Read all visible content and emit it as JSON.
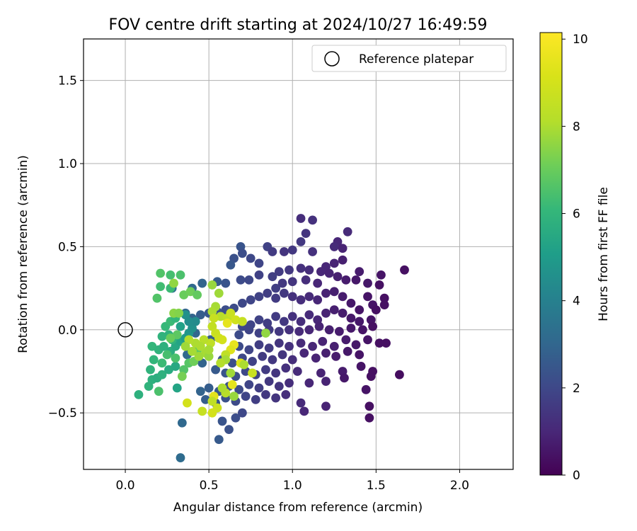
{
  "chart_data": {
    "type": "scatter",
    "title": "FOV centre drift starting at 2024/10/27 16:49:59",
    "xlabel": "Angular distance from reference (arcmin)",
    "ylabel": "Rotation from reference (arcmin)",
    "xlim": [
      -0.25,
      2.32
    ],
    "ylim": [
      -0.84,
      1.75
    ],
    "xticks": [
      0.0,
      0.5,
      1.0,
      1.5,
      2.0
    ],
    "xtick_labels": [
      "0.0",
      "0.5",
      "1.0",
      "1.5",
      "2.0"
    ],
    "yticks": [
      -0.5,
      0.0,
      0.5,
      1.0,
      1.5
    ],
    "ytick_labels": [
      "−0.5",
      "0.0",
      "0.5",
      "1.0",
      "1.5"
    ],
    "grid": true,
    "legend": {
      "placement": "upper right",
      "entries": [
        "Reference platepar"
      ]
    },
    "reference": {
      "x": 0.0,
      "y": 0.0,
      "name": "Reference platepar",
      "marker": "hollow-circle"
    },
    "colorbar": {
      "label": "Hours from first FF file",
      "colormap": "viridis",
      "range": [
        0,
        10.15
      ],
      "ticks": [
        0,
        2,
        4,
        6,
        8,
        10
      ],
      "tick_labels": [
        "0",
        "2",
        "4",
        "6",
        "8",
        "10"
      ]
    },
    "points": [
      [
        1.05,
        0.67,
        1.2
      ],
      [
        1.12,
        0.66,
        1.3
      ],
      [
        1.08,
        0.58,
        1.4
      ],
      [
        1.33,
        0.59,
        1.1
      ],
      [
        1.05,
        0.53,
        1.5
      ],
      [
        1.27,
        0.53,
        1.0
      ],
      [
        0.69,
        0.5,
        2.4
      ],
      [
        0.7,
        0.46,
        2.2
      ],
      [
        0.85,
        0.5,
        1.8
      ],
      [
        0.88,
        0.47,
        1.6
      ],
      [
        0.95,
        0.47,
        1.4
      ],
      [
        1.0,
        0.48,
        1.5
      ],
      [
        1.12,
        0.47,
        1.3
      ],
      [
        1.25,
        0.5,
        1.1
      ],
      [
        1.3,
        0.49,
        0.9
      ],
      [
        0.65,
        0.43,
        2.3
      ],
      [
        0.75,
        0.43,
        2.0
      ],
      [
        0.8,
        0.4,
        1.9
      ],
      [
        0.63,
        0.39,
        2.5
      ],
      [
        1.3,
        0.42,
        0.8
      ],
      [
        1.25,
        0.4,
        0.9
      ],
      [
        1.2,
        0.38,
        1.0
      ],
      [
        1.17,
        0.35,
        1.0
      ],
      [
        1.1,
        0.36,
        1.2
      ],
      [
        1.05,
        0.37,
        1.3
      ],
      [
        0.98,
        0.36,
        1.5
      ],
      [
        0.92,
        0.35,
        1.6
      ],
      [
        0.88,
        0.32,
        1.7
      ],
      [
        0.8,
        0.33,
        1.8
      ],
      [
        0.74,
        0.3,
        2.0
      ],
      [
        0.69,
        0.3,
        2.1
      ],
      [
        0.6,
        0.28,
        2.4
      ],
      [
        0.55,
        0.29,
        2.6
      ],
      [
        0.46,
        0.28,
        2.9
      ],
      [
        0.4,
        0.25,
        3.1
      ],
      [
        0.28,
        0.25,
        3.3
      ],
      [
        1.4,
        0.35,
        0.7
      ],
      [
        1.38,
        0.3,
        0.6
      ],
      [
        1.32,
        0.3,
        0.7
      ],
      [
        1.27,
        0.32,
        0.8
      ],
      [
        1.22,
        0.34,
        0.9
      ],
      [
        1.15,
        0.28,
        1.0
      ],
      [
        1.08,
        0.3,
        1.2
      ],
      [
        1.0,
        0.29,
        1.4
      ],
      [
        0.94,
        0.28,
        1.5
      ],
      [
        0.9,
        0.25,
        1.7
      ],
      [
        1.45,
        0.28,
        0.6
      ],
      [
        1.53,
        0.33,
        0.5
      ],
      [
        1.67,
        0.36,
        0.4
      ],
      [
        1.45,
        0.2,
        0.5
      ],
      [
        1.55,
        0.19,
        0.4
      ],
      [
        1.55,
        0.15,
        0.4
      ],
      [
        1.48,
        0.15,
        0.5
      ],
      [
        1.5,
        0.12,
        0.4
      ],
      [
        1.4,
        0.12,
        0.5
      ],
      [
        1.35,
        0.16,
        0.6
      ],
      [
        1.3,
        0.2,
        0.7
      ],
      [
        1.25,
        0.23,
        0.8
      ],
      [
        1.2,
        0.22,
        0.9
      ],
      [
        1.15,
        0.18,
        1.0
      ],
      [
        1.1,
        0.2,
        1.1
      ],
      [
        1.05,
        0.18,
        1.2
      ],
      [
        1.0,
        0.2,
        1.3
      ],
      [
        0.95,
        0.22,
        1.5
      ],
      [
        0.9,
        0.19,
        1.6
      ],
      [
        0.85,
        0.22,
        1.7
      ],
      [
        0.8,
        0.2,
        1.8
      ],
      [
        0.75,
        0.18,
        1.9
      ],
      [
        0.7,
        0.16,
        2.0
      ],
      [
        0.65,
        0.13,
        2.1
      ],
      [
        0.6,
        0.12,
        2.2
      ],
      [
        0.55,
        0.11,
        2.4
      ],
      [
        0.5,
        0.1,
        2.5
      ],
      [
        0.45,
        0.09,
        2.7
      ],
      [
        0.4,
        0.07,
        2.9
      ],
      [
        0.36,
        0.1,
        3.0
      ],
      [
        1.47,
        0.06,
        0.5
      ],
      [
        1.4,
        0.05,
        0.6
      ],
      [
        1.35,
        0.07,
        0.6
      ],
      [
        1.3,
        0.1,
        0.7
      ],
      [
        1.25,
        0.12,
        0.8
      ],
      [
        1.2,
        0.1,
        0.9
      ],
      [
        1.15,
        0.06,
        1.0
      ],
      [
        1.1,
        0.09,
        1.1
      ],
      [
        1.05,
        0.05,
        1.2
      ],
      [
        1.0,
        0.08,
        1.3
      ],
      [
        0.95,
        0.05,
        1.5
      ],
      [
        0.9,
        0.08,
        1.6
      ],
      [
        0.85,
        0.04,
        1.7
      ],
      [
        0.8,
        0.06,
        1.8
      ],
      [
        0.75,
        0.03,
        1.9
      ],
      [
        0.7,
        0.02,
        2.0
      ],
      [
        1.48,
        0.02,
        0.4
      ],
      [
        1.42,
        0.0,
        0.5
      ],
      [
        1.35,
        0.01,
        0.6
      ],
      [
        1.28,
        -0.01,
        0.7
      ],
      [
        1.22,
        0.0,
        0.8
      ],
      [
        1.16,
        0.02,
        0.9
      ],
      [
        1.1,
        0.0,
        1.0
      ],
      [
        1.04,
        -0.01,
        1.1
      ],
      [
        0.98,
        0.0,
        1.3
      ],
      [
        0.92,
        -0.01,
        1.5
      ],
      [
        0.86,
        0.0,
        1.6
      ],
      [
        0.8,
        -0.02,
        1.8
      ],
      [
        0.74,
        0.0,
        1.9
      ],
      [
        0.68,
        -0.03,
        2.1
      ],
      [
        1.52,
        -0.08,
        0.4
      ],
      [
        1.45,
        -0.06,
        0.5
      ],
      [
        1.38,
        -0.09,
        0.6
      ],
      [
        1.32,
        -0.06,
        0.7
      ],
      [
        1.25,
        -0.1,
        0.8
      ],
      [
        1.18,
        -0.07,
        0.9
      ],
      [
        1.12,
        -0.1,
        1.0
      ],
      [
        1.05,
        -0.08,
        1.1
      ],
      [
        0.98,
        -0.1,
        1.3
      ],
      [
        0.92,
        -0.08,
        1.4
      ],
      [
        0.86,
        -0.11,
        1.6
      ],
      [
        0.8,
        -0.09,
        1.7
      ],
      [
        0.74,
        -0.12,
        1.9
      ],
      [
        0.68,
        -0.1,
        2.1
      ],
      [
        1.4,
        -0.15,
        0.5
      ],
      [
        1.33,
        -0.13,
        0.6
      ],
      [
        1.26,
        -0.16,
        0.7
      ],
      [
        1.2,
        -0.14,
        0.8
      ],
      [
        1.14,
        -0.17,
        0.9
      ],
      [
        1.07,
        -0.14,
        1.0
      ],
      [
        1.0,
        -0.18,
        1.2
      ],
      [
        0.94,
        -0.15,
        1.4
      ],
      [
        0.88,
        -0.18,
        1.5
      ],
      [
        0.82,
        -0.16,
        1.6
      ],
      [
        0.76,
        -0.19,
        1.8
      ],
      [
        0.7,
        -0.17,
        2.0
      ],
      [
        0.64,
        -0.2,
        2.2
      ],
      [
        0.58,
        -0.18,
        2.4
      ],
      [
        1.48,
        -0.25,
        0.4
      ],
      [
        1.41,
        -0.22,
        0.5
      ],
      [
        1.3,
        -0.25,
        0.7
      ],
      [
        1.17,
        -0.26,
        0.9
      ],
      [
        1.03,
        -0.25,
        1.1
      ],
      [
        0.96,
        -0.23,
        1.3
      ],
      [
        0.9,
        -0.26,
        1.4
      ],
      [
        0.84,
        -0.24,
        1.6
      ],
      [
        0.78,
        -0.27,
        1.8
      ],
      [
        0.72,
        -0.25,
        2.0
      ],
      [
        0.66,
        -0.28,
        2.2
      ],
      [
        0.6,
        -0.26,
        2.4
      ],
      [
        0.54,
        -0.24,
        2.6
      ],
      [
        1.47,
        -0.28,
        0.4
      ],
      [
        1.31,
        -0.29,
        0.6
      ],
      [
        1.2,
        -0.31,
        0.9
      ],
      [
        1.1,
        -0.32,
        1.0
      ],
      [
        0.98,
        -0.32,
        1.2
      ],
      [
        0.92,
        -0.34,
        1.4
      ],
      [
        0.86,
        -0.31,
        1.5
      ],
      [
        0.8,
        -0.35,
        1.7
      ],
      [
        0.74,
        -0.33,
        1.9
      ],
      [
        0.68,
        -0.36,
        2.1
      ],
      [
        0.62,
        -0.34,
        2.3
      ],
      [
        0.56,
        -0.37,
        2.5
      ],
      [
        0.5,
        -0.35,
        2.7
      ],
      [
        0.45,
        -0.37,
        2.9
      ],
      [
        1.44,
        -0.36,
        0.5
      ],
      [
        1.46,
        -0.46,
        0.4
      ],
      [
        1.46,
        -0.53,
        0.4
      ],
      [
        1.07,
        -0.49,
        1.0
      ],
      [
        0.96,
        -0.39,
        1.2
      ],
      [
        0.9,
        -0.41,
        1.4
      ],
      [
        0.84,
        -0.39,
        1.5
      ],
      [
        0.78,
        -0.42,
        1.7
      ],
      [
        0.72,
        -0.4,
        1.9
      ],
      [
        0.66,
        -0.43,
        2.1
      ],
      [
        0.6,
        -0.41,
        2.3
      ],
      [
        0.54,
        -0.44,
        2.5
      ],
      [
        0.48,
        -0.42,
        2.7
      ],
      [
        0.7,
        -0.5,
        2.0
      ],
      [
        0.66,
        -0.53,
        2.2
      ],
      [
        0.58,
        -0.55,
        2.4
      ],
      [
        0.62,
        -0.6,
        2.3
      ],
      [
        0.56,
        -0.66,
        2.6
      ],
      [
        0.34,
        -0.56,
        3.1
      ],
      [
        0.33,
        -0.77,
        3.2
      ],
      [
        1.64,
        -0.27,
        0.3
      ],
      [
        1.2,
        -0.46,
        0.9
      ],
      [
        1.05,
        -0.44,
        1.1
      ],
      [
        1.56,
        -0.08,
        0.4
      ],
      [
        1.52,
        0.27,
        0.4
      ],
      [
        0.42,
        -0.02,
        3.0
      ],
      [
        0.46,
        -0.2,
        2.9
      ],
      [
        0.37,
        -0.15,
        3.1
      ],
      [
        0.51,
        -0.06,
        2.7
      ],
      [
        0.08,
        -0.39,
        5.8
      ],
      [
        0.14,
        -0.34,
        5.9
      ],
      [
        0.16,
        -0.3,
        5.8
      ],
      [
        0.19,
        -0.29,
        5.7
      ],
      [
        0.22,
        -0.27,
        5.8
      ],
      [
        0.26,
        -0.24,
        5.6
      ],
      [
        0.3,
        -0.22,
        5.5
      ],
      [
        0.15,
        -0.24,
        5.9
      ],
      [
        0.31,
        -0.35,
        5.3
      ],
      [
        0.2,
        -0.37,
        6.5
      ],
      [
        0.16,
        -0.1,
        6.0
      ],
      [
        0.2,
        -0.12,
        5.9
      ],
      [
        0.23,
        -0.1,
        5.8
      ],
      [
        0.27,
        -0.13,
        5.7
      ],
      [
        0.3,
        -0.1,
        5.5
      ],
      [
        0.33,
        -0.07,
        5.3
      ],
      [
        0.36,
        -0.05,
        5.0
      ],
      [
        0.38,
        -0.02,
        4.8
      ],
      [
        0.4,
        0.01,
        4.6
      ],
      [
        0.42,
        0.05,
        4.4
      ],
      [
        0.36,
        0.09,
        4.6
      ],
      [
        0.38,
        0.05,
        4.5
      ],
      [
        0.26,
        -0.03,
        5.8
      ],
      [
        0.22,
        -0.04,
        5.9
      ],
      [
        0.28,
        -0.06,
        5.9
      ],
      [
        0.33,
        0.02,
        5.2
      ],
      [
        0.24,
        0.02,
        6.1
      ],
      [
        0.27,
        0.05,
        6.2
      ],
      [
        0.3,
        0.07,
        6.0
      ],
      [
        0.21,
        0.34,
        6.6
      ],
      [
        0.27,
        0.33,
        6.4
      ],
      [
        0.33,
        0.33,
        6.5
      ],
      [
        0.21,
        0.26,
        6.3
      ],
      [
        0.27,
        0.25,
        6.2
      ],
      [
        0.19,
        0.19,
        6.6
      ],
      [
        0.35,
        0.21,
        7.0
      ],
      [
        0.39,
        0.23,
        7.1
      ],
      [
        0.29,
        0.28,
        7.6
      ],
      [
        0.43,
        0.21,
        6.9
      ],
      [
        0.29,
        0.1,
        7.5
      ],
      [
        0.32,
        0.1,
        7.4
      ],
      [
        0.31,
        -0.03,
        6.8
      ],
      [
        0.27,
        -0.05,
        7.0
      ],
      [
        0.3,
        -0.17,
        6.5
      ],
      [
        0.35,
        -0.24,
        6.6
      ],
      [
        0.25,
        -0.15,
        6.4
      ],
      [
        0.38,
        -0.2,
        6.7
      ],
      [
        0.17,
        -0.18,
        6.0
      ],
      [
        0.22,
        -0.2,
        6.2
      ],
      [
        0.43,
        -0.12,
        6.9
      ],
      [
        0.34,
        -0.28,
        7.2
      ],
      [
        0.41,
        -0.19,
        7.1
      ],
      [
        0.52,
        0.27,
        7.7
      ],
      [
        0.56,
        0.22,
        7.8
      ],
      [
        0.54,
        0.14,
        7.9
      ],
      [
        0.52,
        0.11,
        8.0
      ],
      [
        0.57,
        0.08,
        8.2
      ],
      [
        0.61,
        0.07,
        8.4
      ],
      [
        0.63,
        0.1,
        8.7
      ],
      [
        0.66,
        0.06,
        8.9
      ],
      [
        0.61,
        0.04,
        9.5
      ],
      [
        0.53,
        0.07,
        8.6
      ],
      [
        0.52,
        0.02,
        8.5
      ],
      [
        0.54,
        -0.02,
        8.7
      ],
      [
        0.56,
        -0.05,
        8.8
      ],
      [
        0.51,
        -0.08,
        8.4
      ],
      [
        0.47,
        -0.06,
        8.2
      ],
      [
        0.45,
        -0.1,
        8.0
      ],
      [
        0.48,
        -0.14,
        7.9
      ],
      [
        0.44,
        -0.16,
        7.8
      ],
      [
        0.5,
        -0.16,
        7.7
      ],
      [
        0.4,
        -0.13,
        7.9
      ],
      [
        0.42,
        -0.08,
        8.0
      ],
      [
        0.38,
        -0.06,
        8.1
      ],
      [
        0.36,
        -0.1,
        7.8
      ],
      [
        0.5,
        -0.12,
        7.9
      ],
      [
        0.65,
        -0.09,
        9.6
      ],
      [
        0.63,
        -0.12,
        9.3
      ],
      [
        0.58,
        -0.06,
        9.0
      ],
      [
        0.6,
        -0.15,
        8.4
      ],
      [
        0.69,
        -0.2,
        9.2
      ],
      [
        0.64,
        -0.33,
        9.5
      ],
      [
        0.6,
        -0.38,
        8.2
      ],
      [
        0.58,
        -0.35,
        8.0
      ],
      [
        0.53,
        -0.4,
        9.4
      ],
      [
        0.52,
        -0.43,
        8.4
      ],
      [
        0.55,
        -0.47,
        8.8
      ],
      [
        0.52,
        -0.5,
        9.0
      ],
      [
        0.46,
        -0.49,
        8.6
      ],
      [
        0.37,
        -0.44,
        9.0
      ],
      [
        0.65,
        -0.4,
        7.7
      ],
      [
        0.71,
        -0.21,
        8.0
      ],
      [
        0.76,
        -0.26,
        8.7
      ],
      [
        0.84,
        -0.02,
        7.6
      ],
      [
        0.6,
        -0.18,
        7.9
      ],
      [
        0.63,
        -0.26,
        7.8
      ],
      [
        0.7,
        0.05,
        8.6
      ],
      [
        0.57,
        -0.2,
        8.1
      ]
    ]
  }
}
